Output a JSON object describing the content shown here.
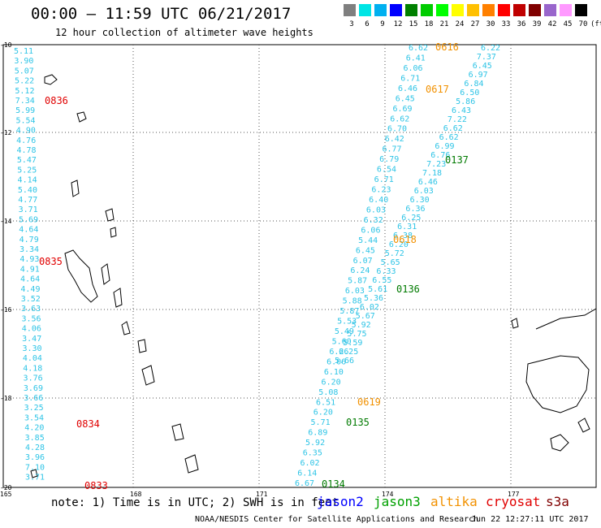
{
  "title": "00:00 – 11:59 UTC 06/21/2017",
  "subtitle": "12 hour collection of altimeter wave heights",
  "colorbar": {
    "colors": [
      "#7f7f7f",
      "#00e5e5",
      "#00b0f0",
      "#0000ff",
      "#008000",
      "#00cc00",
      "#00ff00",
      "#ffff00",
      "#ffc000",
      "#ff8000",
      "#ff0000",
      "#c00000",
      "#800000",
      "#9966cc",
      "#ff99ff",
      "#000000"
    ],
    "labels": [
      "3",
      "6",
      "9",
      "12",
      "15",
      "18",
      "21",
      "24",
      "27",
      "30",
      "33",
      "36",
      "39",
      "42",
      "45",
      "70",
      "(ft)"
    ]
  },
  "axes": {
    "lon_ticks": [
      "165",
      "168",
      "171",
      "174",
      "177"
    ],
    "lat_ticks": [
      "-10",
      "-12",
      "-14",
      "-16",
      "-18",
      "-20"
    ]
  },
  "left_track_values": [
    "5.11",
    "3.90",
    "5.07",
    "5.22",
    "5.12",
    "7.34",
    "5.99",
    "5.54",
    "4.90",
    "4.76",
    "4.78",
    "5.47",
    "5.25",
    "4.14",
    "5.40",
    "4.77",
    "3.71",
    "5.69",
    "4.64",
    "4.79",
    "3.34",
    "4.93",
    "4.91",
    "4.64",
    "4.49",
    "3.52",
    "3.63",
    "3.56",
    "4.06",
    "3.47",
    "3.30",
    "4.04",
    "4.18",
    "3.76",
    "3.69",
    "3.66",
    "3.25",
    "3.54",
    "4.20",
    "3.85",
    "4.28",
    "3.96",
    "7.10",
    "3.71"
  ],
  "left_times": [
    "0836",
    "0835",
    "0834",
    "0833"
  ],
  "track_a_values": [
    "6.62",
    "6.41",
    "6.06",
    "6.71",
    "6.46",
    "6.45",
    "6.69",
    "6.62",
    "6.70",
    "6.42",
    "6.77",
    "6.79",
    "6.54",
    "6.71",
    "6.23",
    "6.40",
    "6.03",
    "6.32",
    "6.06",
    "5.44",
    "6.45",
    "6.07",
    "6.24",
    "5.87",
    "6.03",
    "5.88",
    "5.87",
    "5.53",
    "5.49",
    "5.60",
    "6.26",
    "6.06",
    "6.10",
    "6.20",
    "5.08",
    "6.51",
    "6.20",
    "5.71",
    "6.89",
    "5.92",
    "6.35",
    "6.02",
    "6.14",
    "6.67"
  ],
  "track_b_values": [
    "6.22",
    "7.37",
    "6.45",
    "6.97",
    "6.84",
    "6.50",
    "5.86",
    "6.43",
    "7.22",
    "6.62",
    "6.62",
    "6.99",
    "6.76",
    "7.23",
    "7.18",
    "6.46",
    "6.03",
    "6.30",
    "6.36",
    "6.25",
    "6.31",
    "6.38",
    "6.20",
    "5.72",
    "5.65",
    "6.33",
    "6.55",
    "5.61",
    "5.36",
    "6.02",
    "5.67",
    "5.92",
    "5.75",
    "5.59",
    "6.25",
    "5.66"
  ],
  "track_times_orange": [
    "0616",
    "0617",
    "0618",
    "0619"
  ],
  "track_times_green": [
    "0137",
    "0136",
    "0135",
    "0134"
  ],
  "footer": {
    "note": "note: 1) Time is in UTC; 2) SWH is in feet",
    "satellites": [
      {
        "name": "jason2",
        "color": "#0000ff"
      },
      {
        "name": "jason3",
        "color": "#00a000"
      },
      {
        "name": "altika",
        "color": "#f29100"
      },
      {
        "name": "cryosat",
        "color": "#e00000"
      },
      {
        "name": "s3a",
        "color": "#800000"
      }
    ],
    "credit": "NOAA/NESDIS Center for Satellite Applications and Research",
    "timestamp": "Jun 22 12:27:11 UTC 2017"
  }
}
